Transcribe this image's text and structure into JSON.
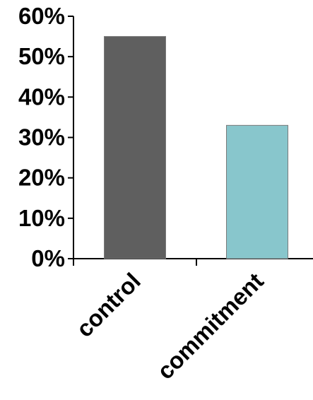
{
  "chart_data": {
    "type": "bar",
    "categories": [
      "control",
      "commitment"
    ],
    "values": [
      55,
      33
    ],
    "ylim": [
      0,
      60
    ],
    "yticks": [
      0,
      10,
      20,
      30,
      40,
      50,
      60
    ],
    "ytick_labels": [
      "0%",
      "10%",
      "20%",
      "30%",
      "40%",
      "50%",
      "60%"
    ],
    "title": "",
    "xlabel": "",
    "ylabel": "",
    "grid": false,
    "legend": "none",
    "colors": [
      "#5f5f5f",
      "#88c6cc"
    ],
    "edge_color": "#7a7a7a",
    "axis_color": "#000000"
  }
}
